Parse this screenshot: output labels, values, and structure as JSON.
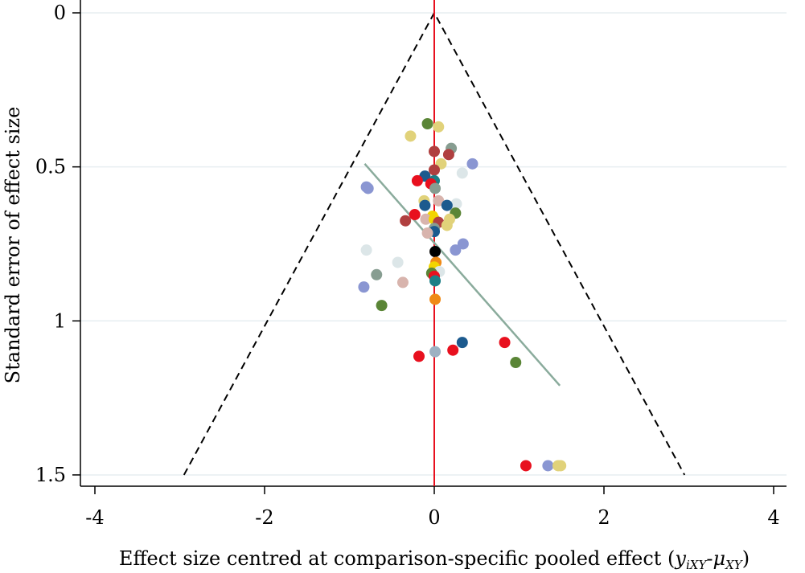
{
  "chart_data": {
    "type": "scatter",
    "title": "",
    "xlabel": "Effect size centred at comparison-specific pooled effect (",
    "xlabel_math_y": "y",
    "xlabel_math_y_sub": "iXY",
    "xlabel_math_mu": "μ",
    "xlabel_math_mu_sub": "XY",
    "xlabel_close": ")",
    "ylabel": "Standard error of effect size",
    "xlim": [
      -4.1,
      4.1
    ],
    "ylim": [
      1.52,
      0
    ],
    "x_ticks": [
      -4,
      -2,
      0,
      2,
      4
    ],
    "x_tick_labels": [
      "-4",
      "-2",
      "0",
      "2",
      "4"
    ],
    "y_ticks": [
      0,
      0.5,
      1,
      1.5
    ],
    "y_tick_labels": [
      "0",
      "0.5",
      "1",
      "1.5"
    ],
    "y_reversed": true,
    "grid": "horizontal",
    "funnel": {
      "apex": [
        0,
        0
      ],
      "bottom_left": [
        -2.95,
        1.5
      ],
      "bottom_right": [
        2.95,
        1.5
      ],
      "style": "dashed"
    },
    "reference_line": {
      "x": 0,
      "color": "#e8101e"
    },
    "regression_line": {
      "x": [
        -0.82,
        1.48
      ],
      "y": [
        0.49,
        1.21
      ],
      "color": "#8aab9c"
    },
    "colors": {
      "red": "#e8101e",
      "blue": "#1c5a8e",
      "periwinkle": "#8a96d2",
      "green": "#5a8536",
      "sage": "#879d91",
      "khaki": "#e1d27a",
      "maroon": "#b04040",
      "pink": "#d8b4ad",
      "lightgray": "#dce6e8",
      "orange": "#ef8a17",
      "yellow": "#f2d500",
      "black": "#000000",
      "teal": "#1d7f86",
      "slate": "#9db1c2"
    },
    "points": [
      {
        "x": -0.08,
        "y": 0.36,
        "c": "green"
      },
      {
        "x": 0.05,
        "y": 0.37,
        "c": "khaki"
      },
      {
        "x": -0.28,
        "y": 0.4,
        "c": "khaki"
      },
      {
        "x": 0.2,
        "y": 0.44,
        "c": "sage"
      },
      {
        "x": 0.0,
        "y": 0.45,
        "c": "maroon"
      },
      {
        "x": 0.17,
        "y": 0.46,
        "c": "maroon"
      },
      {
        "x": 0.08,
        "y": 0.49,
        "c": "khaki"
      },
      {
        "x": 0.45,
        "y": 0.49,
        "c": "periwinkle"
      },
      {
        "x": 0.33,
        "y": 0.52,
        "c": "lightgray"
      },
      {
        "x": 0.0,
        "y": 0.51,
        "c": "maroon"
      },
      {
        "x": -0.11,
        "y": 0.53,
        "c": "blue"
      },
      {
        "x": -0.2,
        "y": 0.545,
        "c": "red"
      },
      {
        "x": 0.0,
        "y": 0.545,
        "c": "teal"
      },
      {
        "x": -0.04,
        "y": 0.555,
        "c": "red"
      },
      {
        "x": 0.01,
        "y": 0.57,
        "c": "sage"
      },
      {
        "x": -0.8,
        "y": 0.565,
        "c": "periwinkle"
      },
      {
        "x": -0.78,
        "y": 0.57,
        "c": "periwinkle"
      },
      {
        "x": -0.12,
        "y": 0.61,
        "c": "khaki"
      },
      {
        "x": 0.05,
        "y": 0.61,
        "c": "pink"
      },
      {
        "x": 0.26,
        "y": 0.62,
        "c": "lightgray"
      },
      {
        "x": -0.11,
        "y": 0.625,
        "c": "blue"
      },
      {
        "x": 0.15,
        "y": 0.625,
        "c": "blue"
      },
      {
        "x": -0.23,
        "y": 0.655,
        "c": "red"
      },
      {
        "x": -0.02,
        "y": 0.66,
        "c": "yellow"
      },
      {
        "x": 0.25,
        "y": 0.65,
        "c": "green"
      },
      {
        "x": -0.1,
        "y": 0.67,
        "c": "pink"
      },
      {
        "x": 0.0,
        "y": 0.67,
        "c": "yellow"
      },
      {
        "x": 0.18,
        "y": 0.67,
        "c": "khaki"
      },
      {
        "x": -0.34,
        "y": 0.675,
        "c": "maroon"
      },
      {
        "x": 0.05,
        "y": 0.68,
        "c": "maroon"
      },
      {
        "x": 0.15,
        "y": 0.69,
        "c": "khaki"
      },
      {
        "x": 0.0,
        "y": 0.7,
        "c": "sage"
      },
      {
        "x": 0.0,
        "y": 0.71,
        "c": "blue"
      },
      {
        "x": -0.08,
        "y": 0.715,
        "c": "pink"
      },
      {
        "x": 0.34,
        "y": 0.75,
        "c": "periwinkle"
      },
      {
        "x": 0.25,
        "y": 0.77,
        "c": "periwinkle"
      },
      {
        "x": -0.8,
        "y": 0.77,
        "c": "lightgray"
      },
      {
        "x": 0.01,
        "y": 0.775,
        "c": "black"
      },
      {
        "x": -0.43,
        "y": 0.81,
        "c": "lightgray"
      },
      {
        "x": 0.02,
        "y": 0.81,
        "c": "orange"
      },
      {
        "x": 0.0,
        "y": 0.825,
        "c": "yellow"
      },
      {
        "x": 0.06,
        "y": 0.84,
        "c": "lightgray"
      },
      {
        "x": -0.68,
        "y": 0.85,
        "c": "sage"
      },
      {
        "x": -0.03,
        "y": 0.845,
        "c": "green"
      },
      {
        "x": 0.0,
        "y": 0.855,
        "c": "red"
      },
      {
        "x": 0.01,
        "y": 0.87,
        "c": "teal"
      },
      {
        "x": -0.37,
        "y": 0.875,
        "c": "pink"
      },
      {
        "x": -0.83,
        "y": 0.89,
        "c": "periwinkle"
      },
      {
        "x": 0.01,
        "y": 0.93,
        "c": "orange"
      },
      {
        "x": -0.62,
        "y": 0.95,
        "c": "green"
      },
      {
        "x": 0.33,
        "y": 1.07,
        "c": "blue"
      },
      {
        "x": 0.83,
        "y": 1.07,
        "c": "red"
      },
      {
        "x": 0.22,
        "y": 1.095,
        "c": "red"
      },
      {
        "x": 0.01,
        "y": 1.1,
        "c": "slate"
      },
      {
        "x": -0.18,
        "y": 1.115,
        "c": "red"
      },
      {
        "x": 0.96,
        "y": 1.135,
        "c": "green"
      },
      {
        "x": 1.08,
        "y": 1.47,
        "c": "red"
      },
      {
        "x": 1.34,
        "y": 1.47,
        "c": "periwinkle"
      },
      {
        "x": 1.46,
        "y": 1.47,
        "c": "khaki"
      },
      {
        "x": 1.49,
        "y": 1.47,
        "c": "khaki"
      }
    ]
  }
}
